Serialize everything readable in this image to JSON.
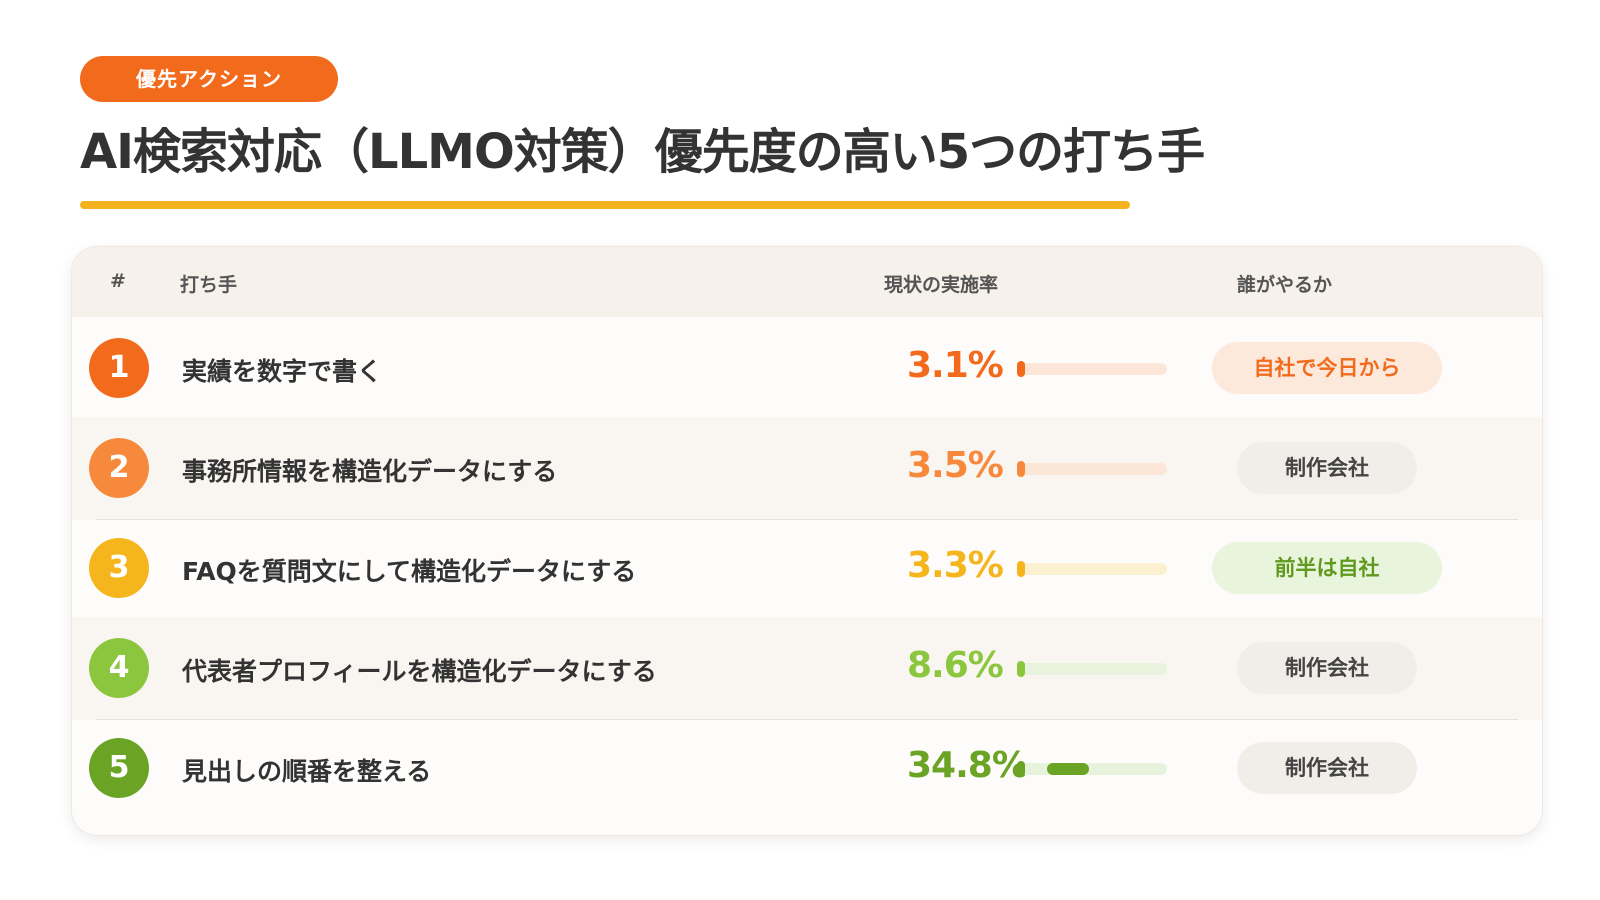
{
  "header": {
    "badge": "優先アクション",
    "title": "AI検索対応（LLMO対策）優先度の高い5つの打ち手"
  },
  "table": {
    "columns": [
      "#",
      "打ち手",
      "現状の実施率",
      "誰がやるか"
    ],
    "rows": [
      {
        "num": "1",
        "action": "実績を数字で書く",
        "rate_label": "3.1%",
        "rate": 3.1,
        "who": "自社で今日から",
        "color": "#f26b1d",
        "track": "#fbe6d8",
        "who_bg": "#fde9dc",
        "who_fg": "#f26b1d"
      },
      {
        "num": "2",
        "action": "事務所情報を構造化データにする",
        "rate_label": "3.5%",
        "rate": 3.5,
        "who": "制作会社",
        "color": "#f7893d",
        "track": "#fbe6d8",
        "who_bg": "#f1eeea",
        "who_fg": "#444444"
      },
      {
        "num": "3",
        "action": "FAQを質問文にして構造化データにする",
        "rate_label": "3.3%",
        "rate": 3.3,
        "who": "前半は自社",
        "color": "#f5b51c",
        "track": "#fbf0cf",
        "who_bg": "#e9f4dc",
        "who_fg": "#5f9a1e"
      },
      {
        "num": "4",
        "action": "代表者プロフィールを構造化データにする",
        "rate_label": "8.6%",
        "rate": 8.6,
        "who": "制作会社",
        "color": "#8cc63f",
        "track": "#e8f3dd",
        "who_bg": "#f1eeea",
        "who_fg": "#444444"
      },
      {
        "num": "5",
        "action": "見出しの順番を整える",
        "rate_label": "34.8%",
        "rate": 34.8,
        "who": "制作会社",
        "color": "#6ba425",
        "track": "#e8f3dd",
        "who_bg": "#f1eeea",
        "who_fg": "#444444"
      }
    ]
  }
}
